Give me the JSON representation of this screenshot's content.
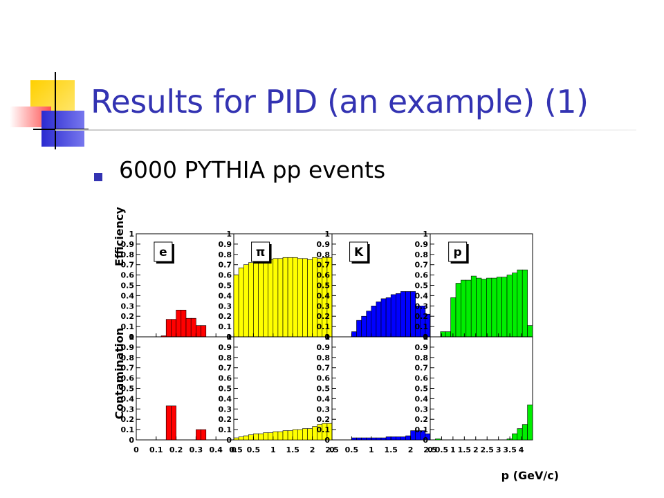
{
  "slide": {
    "title": "Results for PID (an example) (1)",
    "bullet": "6000 PYTHIA pp events",
    "accent_color": "#3333b2"
  },
  "chart_data": {
    "type": "bar",
    "xlabel": "p (GeV/c)",
    "row_labels": [
      "Efficiency",
      "Contamination"
    ],
    "yticks": [
      "0",
      "0.1",
      "0.2",
      "0.3",
      "0.4",
      "0.5",
      "0.6",
      "0.7",
      "0.8",
      "0.9",
      "1"
    ],
    "ylim": [
      0,
      1
    ],
    "panels": [
      {
        "particle": "e",
        "color": "#ff0000",
        "xlim": [
          0,
          0.5
        ],
        "xticks": [
          "0",
          "0.1",
          "0.2",
          "0.3",
          "0.4",
          "0.5"
        ],
        "bin_edges": [
          0,
          0.025,
          0.05,
          0.075,
          0.1,
          0.125,
          0.15,
          0.175,
          0.2,
          0.225,
          0.25,
          0.275,
          0.3,
          0.325,
          0.35,
          0.375,
          0.4,
          0.425,
          0.45,
          0.475,
          0.5
        ],
        "efficiency": [
          0,
          0,
          0,
          0,
          0,
          0.01,
          0.17,
          0.17,
          0.26,
          0.26,
          0.18,
          0.18,
          0.11,
          0.11,
          0,
          0,
          0,
          0,
          0,
          0
        ],
        "contamination": [
          0,
          0,
          0,
          0,
          0,
          0,
          0.33,
          0.33,
          0,
          0,
          0,
          0,
          0.1,
          0.1,
          0,
          0,
          0,
          0,
          0,
          0
        ]
      },
      {
        "particle": "π",
        "color": "#ffff00",
        "xlim": [
          0,
          2.5
        ],
        "xticks": [
          "0",
          "0.5",
          "1",
          "1.5",
          "2",
          "2.5"
        ],
        "bin_edges": [
          0,
          0.125,
          0.25,
          0.375,
          0.5,
          0.625,
          0.75,
          0.875,
          1,
          1.125,
          1.25,
          1.375,
          1.5,
          1.625,
          1.75,
          1.875,
          2,
          2.125,
          2.25,
          2.375,
          2.5
        ],
        "efficiency": [
          0.6,
          0.67,
          0.7,
          0.72,
          0.73,
          0.74,
          0.75,
          0.75,
          0.76,
          0.76,
          0.77,
          0.77,
          0.77,
          0.76,
          0.76,
          0.75,
          0.77,
          0.76,
          0.77,
          0.77
        ],
        "contamination": [
          0.02,
          0.03,
          0.04,
          0.05,
          0.06,
          0.06,
          0.07,
          0.07,
          0.08,
          0.08,
          0.09,
          0.09,
          0.1,
          0.1,
          0.11,
          0.11,
          0.13,
          0.15,
          0.16,
          0.16
        ]
      },
      {
        "particle": "K",
        "color": "#0000ff",
        "xlim": [
          0,
          2.5
        ],
        "xticks": [
          "0",
          "0.5",
          "1",
          "1.5",
          "2",
          "2.5"
        ],
        "bin_edges": [
          0,
          0.125,
          0.25,
          0.375,
          0.5,
          0.625,
          0.75,
          0.875,
          1,
          1.125,
          1.25,
          1.375,
          1.5,
          1.625,
          1.75,
          1.875,
          2,
          2.125,
          2.25,
          2.375,
          2.5
        ],
        "efficiency": [
          0,
          0,
          0,
          0,
          0.05,
          0.16,
          0.2,
          0.25,
          0.3,
          0.34,
          0.37,
          0.38,
          0.41,
          0.42,
          0.44,
          0.44,
          0.44,
          0.3,
          0.3,
          0.22
        ],
        "contamination": [
          0,
          0,
          0,
          0,
          0.02,
          0.02,
          0.02,
          0.02,
          0.02,
          0.02,
          0.02,
          0.03,
          0.03,
          0.03,
          0.03,
          0.04,
          0.09,
          0.09,
          0.09,
          0.06
        ]
      },
      {
        "particle": "p",
        "color": "#00ee00",
        "xlim": [
          0,
          4.5
        ],
        "xticks": [
          "0",
          "0.5",
          "1",
          "1.5",
          "2",
          "2.5",
          "3",
          "3.5",
          "4"
        ],
        "bin_edges": [
          0,
          0.225,
          0.45,
          0.675,
          0.9,
          1.125,
          1.35,
          1.575,
          1.8,
          2.025,
          2.25,
          2.475,
          2.7,
          2.925,
          3.15,
          3.375,
          3.6,
          3.825,
          4.05,
          4.275,
          4.5
        ],
        "efficiency": [
          0,
          0,
          0.05,
          0.05,
          0.38,
          0.52,
          0.55,
          0.55,
          0.59,
          0.57,
          0.56,
          0.57,
          0.57,
          0.58,
          0.58,
          0.6,
          0.62,
          0.65,
          0.65,
          0.11
        ],
        "contamination": [
          0,
          0.01,
          0,
          0,
          0,
          0,
          0,
          0,
          0,
          0,
          0,
          0,
          0,
          0,
          0,
          0.01,
          0.06,
          0.11,
          0.15,
          0.34
        ]
      }
    ]
  }
}
